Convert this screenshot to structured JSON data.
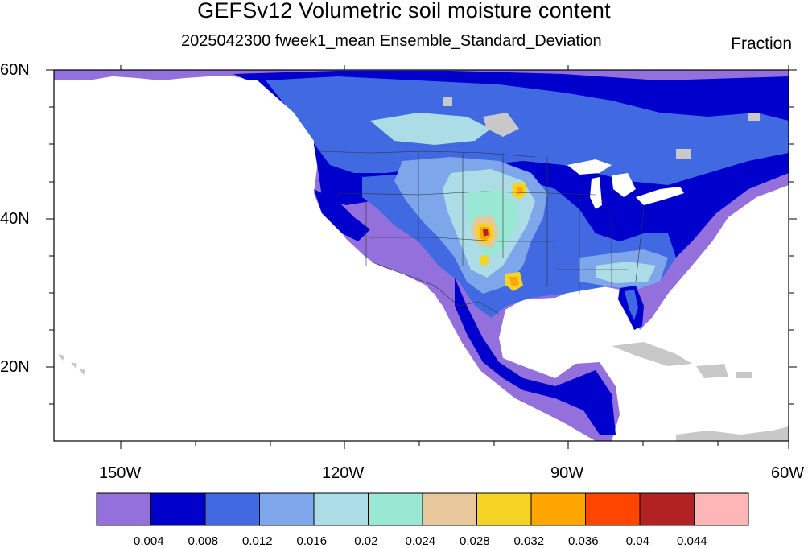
{
  "title": "GEFSv12 Volumetric soil moisture content",
  "subtitle": "2025042300 fweek1_mean Ensemble_Standard_Deviation",
  "units": "Fraction",
  "lat_labels": [
    "60N",
    "40N",
    "20N"
  ],
  "lon_labels": [
    "150W",
    "120W",
    "90W",
    "60W"
  ],
  "colorbar": {
    "labels": [
      "0.004",
      "0.008",
      "0.012",
      "0.016",
      "0.02",
      "0.024",
      "0.028",
      "0.032",
      "0.036",
      "0.04",
      "0.044"
    ],
    "colors": [
      "#9370db",
      "#0000cd",
      "#4169e1",
      "#7ea6ea",
      "#acdde6",
      "#98e8d4",
      "#e6c89c",
      "#f5d324",
      "#ffa500",
      "#ff4500",
      "#b22222",
      "#ffb6b6"
    ]
  },
  "map": {
    "land_color": "#c8c8c8",
    "ocean_color": "#ffffff",
    "lat_range": [
      10,
      60
    ],
    "lon_range": [
      -160,
      -60
    ]
  }
}
